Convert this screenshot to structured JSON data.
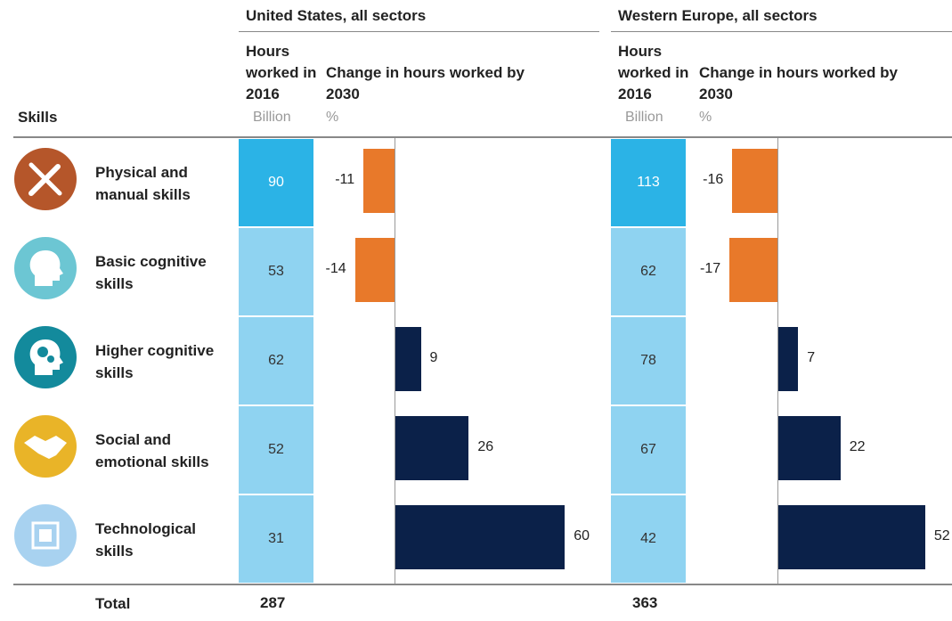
{
  "skills_header": "Skills",
  "skills": [
    "Physical and manual skills",
    "Basic cognitive skills",
    "Higher cognitive skills",
    "Social and emotional skills",
    "Technological skills"
  ],
  "total_label": "Total",
  "colors": {
    "negative": "#e8792a",
    "positive": "#0b2149",
    "highlight": "#2bb3e6",
    "cell": "#8fd3f1"
  },
  "regions": [
    {
      "title": "United States, all sectors",
      "hours_label": "Hours worked in 2016",
      "hours_unit": "Billion",
      "change_label": "Change in hours worked by 2030",
      "change_unit": "%",
      "hours": [
        90,
        53,
        62,
        52,
        31
      ],
      "change": [
        -11,
        -14,
        9,
        26,
        60
      ],
      "total": 287
    },
    {
      "title": "Western Europe, all sectors",
      "hours_label": "Hours worked in 2016",
      "hours_unit": "Billion",
      "change_label": "Change in hours worked by 2030",
      "change_unit": "%",
      "hours": [
        113,
        62,
        78,
        67,
        42
      ],
      "change": [
        -16,
        -17,
        7,
        22,
        52
      ],
      "total": 363
    }
  ]
}
